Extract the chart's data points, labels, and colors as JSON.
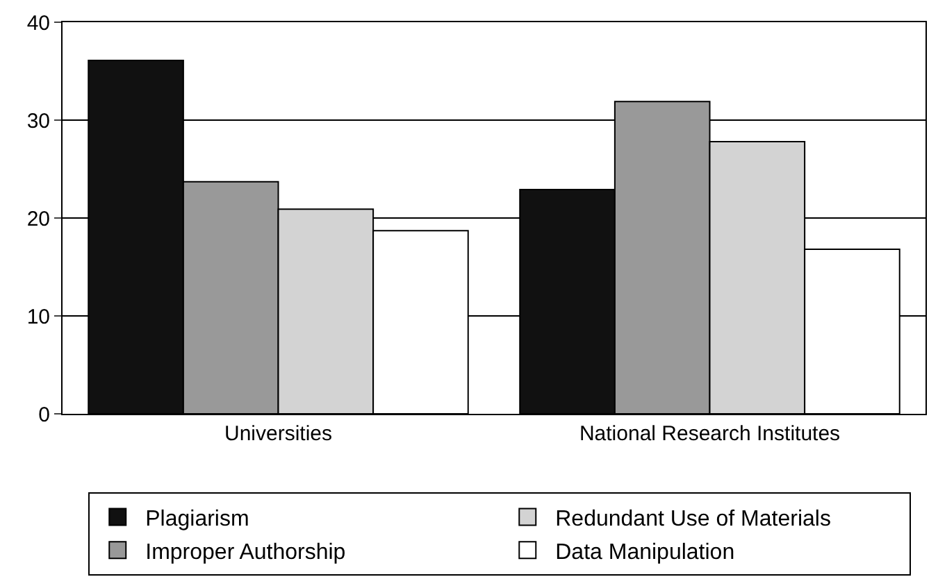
{
  "chart_data": {
    "type": "bar",
    "categories": [
      "Universities",
      "National Research Institutes"
    ],
    "series": [
      {
        "name": "Plagiarism",
        "color": "#111111",
        "values": [
          36.1,
          22.9
        ]
      },
      {
        "name": "Improper Authorship",
        "color": "#999999",
        "values": [
          23.7,
          31.9
        ]
      },
      {
        "name": "Redundant Use of Materials",
        "color": "#d3d3d3",
        "values": [
          20.9,
          27.8
        ]
      },
      {
        "name": "Data Manipulation",
        "color": "#ffffff",
        "values": [
          18.7,
          16.8
        ]
      }
    ],
    "ylim": [
      0,
      40
    ],
    "yticks": [
      0,
      10,
      20,
      30,
      40
    ],
    "grid": "y",
    "legend": "bottom"
  }
}
